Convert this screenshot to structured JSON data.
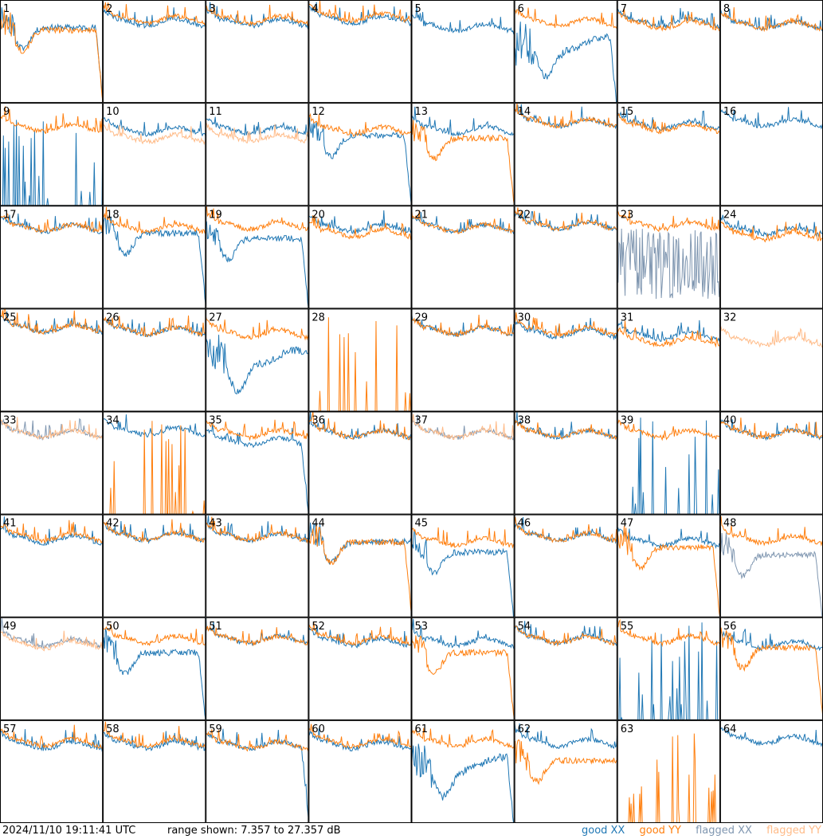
{
  "footer": {
    "timestamp": "2024/11/10 19:11:41 UTC",
    "range_text": "range shown: 7.357 to 27.357 dB",
    "legend": [
      {
        "label": "good XX",
        "color": "#1f77b4"
      },
      {
        "label": "good YY",
        "color": "#ff7f0e"
      },
      {
        "label": "flagged XX",
        "color": "#7f96b0"
      },
      {
        "label": "flagged YY",
        "color": "#ffbb88"
      }
    ]
  },
  "chart_data": {
    "type": "line",
    "grid_rows": 8,
    "grid_cols": 8,
    "ylim": [
      7.357,
      27.357
    ],
    "yunit": "dB",
    "series_colors": {
      "good_xx": "#1f77b4",
      "good_yy": "#ff7f0e",
      "flagged_xx": "#7f96b0",
      "flagged_yy": "#ffbb88"
    },
    "panels": [
      {
        "label": "1",
        "xx": {
          "state": "good",
          "shape": "dip",
          "level": 22,
          "drop": true
        },
        "yy": {
          "state": "good",
          "shape": "dip",
          "level": 21.5,
          "drop": true
        }
      },
      {
        "label": "2",
        "xx": {
          "state": "good",
          "shape": "normal",
          "level": 23
        },
        "yy": {
          "state": "good",
          "shape": "normal",
          "level": 23.5
        }
      },
      {
        "label": "3",
        "xx": {
          "state": "good",
          "shape": "normal",
          "level": 23
        },
        "yy": {
          "state": "good",
          "shape": "normal",
          "level": 23.5
        }
      },
      {
        "label": "4",
        "xx": {
          "state": "good",
          "shape": "normal",
          "level": 23.5
        },
        "yy": {
          "state": "good",
          "shape": "normal",
          "level": 24
        }
      },
      {
        "label": "5",
        "xx": {
          "state": "good",
          "shape": "normal",
          "level": 22
        },
        "yy": {
          "state": "good",
          "shape": "flat_low"
        }
      },
      {
        "label": "6",
        "xx": {
          "state": "good",
          "shape": "deep_dip",
          "level": 19,
          "drop": true
        },
        "yy": {
          "state": "good",
          "shape": "normal",
          "level": 23
        }
      },
      {
        "label": "7",
        "xx": {
          "state": "good",
          "shape": "normal",
          "level": 23
        },
        "yy": {
          "state": "good",
          "shape": "normal",
          "level": 22.5
        }
      },
      {
        "label": "8",
        "xx": {
          "state": "good",
          "shape": "normal",
          "level": 22.5
        },
        "yy": {
          "state": "good",
          "shape": "normal",
          "level": 22.5
        }
      },
      {
        "label": "9",
        "xx": {
          "state": "good",
          "shape": "sparse_spikes"
        },
        "yy": {
          "state": "good",
          "shape": "normal",
          "level": 22.5
        }
      },
      {
        "label": "10",
        "xx": {
          "state": "good",
          "shape": "normal",
          "level": 22
        },
        "yy": {
          "state": "flagged",
          "shape": "normal",
          "level": 20.5
        }
      },
      {
        "label": "11",
        "xx": {
          "state": "good",
          "shape": "normal",
          "level": 22
        },
        "yy": {
          "state": "flagged",
          "shape": "normal",
          "level": 20.5
        }
      },
      {
        "label": "12",
        "xx": {
          "state": "good",
          "shape": "dip",
          "level": 21,
          "drop": true
        },
        "yy": {
          "state": "good",
          "shape": "normal",
          "level": 22
        }
      },
      {
        "label": "13",
        "xx": {
          "state": "good",
          "shape": "normal",
          "level": 22
        },
        "yy": {
          "state": "good",
          "shape": "dip",
          "level": 20.5,
          "drop": true
        }
      },
      {
        "label": "14",
        "xx": {
          "state": "good",
          "shape": "normal",
          "level": 23.5
        },
        "yy": {
          "state": "good",
          "shape": "normal",
          "level": 23.5
        }
      },
      {
        "label": "15",
        "xx": {
          "state": "good",
          "shape": "normal",
          "level": 23
        },
        "yy": {
          "state": "good",
          "shape": "normal",
          "level": 22.5
        }
      },
      {
        "label": "16",
        "xx": {
          "state": "good",
          "shape": "normal",
          "level": 23.5
        },
        "yy": {
          "state": "flagged",
          "shape": "flat_low"
        }
      },
      {
        "label": "17",
        "xx": {
          "state": "good",
          "shape": "normal",
          "level": 23
        },
        "yy": {
          "state": "good",
          "shape": "normal",
          "level": 23
        }
      },
      {
        "label": "18",
        "xx": {
          "state": "good",
          "shape": "dip",
          "level": 22,
          "drop": true
        },
        "yy": {
          "state": "good",
          "shape": "normal",
          "level": 23
        }
      },
      {
        "label": "19",
        "xx": {
          "state": "good",
          "shape": "dip",
          "level": 21,
          "drop": true
        },
        "yy": {
          "state": "good",
          "shape": "normal",
          "level": 23.5
        }
      },
      {
        "label": "20",
        "xx": {
          "state": "good",
          "shape": "normal",
          "level": 23
        },
        "yy": {
          "state": "good",
          "shape": "normal",
          "level": 22
        }
      },
      {
        "label": "21",
        "xx": {
          "state": "good",
          "shape": "normal",
          "level": 23
        },
        "yy": {
          "state": "good",
          "shape": "normal",
          "level": 23
        }
      },
      {
        "label": "22",
        "xx": {
          "state": "good",
          "shape": "normal",
          "level": 23.5
        },
        "yy": {
          "state": "good",
          "shape": "normal",
          "level": 23.5
        }
      },
      {
        "label": "23",
        "xx": {
          "state": "flagged",
          "shape": "noisy",
          "level": 16
        },
        "yy": {
          "state": "good",
          "shape": "normal",
          "level": 23.5
        }
      },
      {
        "label": "24",
        "xx": {
          "state": "good",
          "shape": "normal",
          "level": 22.5
        },
        "yy": {
          "state": "good",
          "shape": "normal",
          "level": 21.5
        }
      },
      {
        "label": "25",
        "xx": {
          "state": "good",
          "shape": "normal",
          "level": 23.5
        },
        "yy": {
          "state": "good",
          "shape": "normal",
          "level": 23.5
        }
      },
      {
        "label": "26",
        "xx": {
          "state": "good",
          "shape": "normal",
          "level": 23
        },
        "yy": {
          "state": "good",
          "shape": "normal",
          "level": 23
        }
      },
      {
        "label": "27",
        "xx": {
          "state": "good",
          "shape": "deep_dip",
          "level": 18
        },
        "yy": {
          "state": "good",
          "shape": "normal",
          "level": 22.5
        }
      },
      {
        "label": "28",
        "xx": {
          "state": "good",
          "shape": "flat_low"
        },
        "yy": {
          "state": "good",
          "shape": "sparse_spikes"
        }
      },
      {
        "label": "29",
        "xx": {
          "state": "good",
          "shape": "normal",
          "level": 23
        },
        "yy": {
          "state": "good",
          "shape": "normal",
          "level": 23
        }
      },
      {
        "label": "30",
        "xx": {
          "state": "good",
          "shape": "normal",
          "level": 22.5
        },
        "yy": {
          "state": "good",
          "shape": "normal",
          "level": 23
        }
      },
      {
        "label": "31",
        "xx": {
          "state": "good",
          "shape": "normal",
          "level": 22
        },
        "yy": {
          "state": "good",
          "shape": "normal",
          "level": 21
        }
      },
      {
        "label": "32",
        "xx": {
          "state": "flagged",
          "shape": "flat_low"
        },
        "yy": {
          "state": "flagged",
          "shape": "normal",
          "level": 21
        }
      },
      {
        "label": "33",
        "xx": {
          "state": "flagged",
          "shape": "normal",
          "level": 23
        },
        "yy": {
          "state": "flagged",
          "shape": "normal",
          "level": 23
        }
      },
      {
        "label": "34",
        "xx": {
          "state": "good",
          "shape": "normal",
          "level": 23.5
        },
        "yy": {
          "state": "good",
          "shape": "sparse_spikes"
        }
      },
      {
        "label": "35",
        "xx": {
          "state": "good",
          "shape": "normal",
          "level": 21.5,
          "drop": true
        },
        "yy": {
          "state": "good",
          "shape": "normal",
          "level": 23
        }
      },
      {
        "label": "36",
        "xx": {
          "state": "good",
          "shape": "normal",
          "level": 23
        },
        "yy": {
          "state": "good",
          "shape": "normal",
          "level": 23
        }
      },
      {
        "label": "37",
        "xx": {
          "state": "flagged",
          "shape": "normal",
          "level": 23
        },
        "yy": {
          "state": "flagged",
          "shape": "normal",
          "level": 23
        }
      },
      {
        "label": "38",
        "xx": {
          "state": "good",
          "shape": "normal",
          "level": 23
        },
        "yy": {
          "state": "good",
          "shape": "normal",
          "level": 23
        }
      },
      {
        "label": "39",
        "xx": {
          "state": "good",
          "shape": "sparse_spikes"
        },
        "yy": {
          "state": "good",
          "shape": "normal",
          "level": 23
        }
      },
      {
        "label": "40",
        "xx": {
          "state": "good",
          "shape": "normal",
          "level": 23
        },
        "yy": {
          "state": "good",
          "shape": "normal",
          "level": 23
        }
      },
      {
        "label": "41",
        "xx": {
          "state": "good",
          "shape": "normal",
          "level": 22.5
        },
        "yy": {
          "state": "good",
          "shape": "normal",
          "level": 23
        }
      },
      {
        "label": "42",
        "xx": {
          "state": "good",
          "shape": "normal",
          "level": 23
        },
        "yy": {
          "state": "good",
          "shape": "normal",
          "level": 23
        }
      },
      {
        "label": "43",
        "xx": {
          "state": "good",
          "shape": "normal",
          "level": 23
        },
        "yy": {
          "state": "good",
          "shape": "normal",
          "level": 23
        }
      },
      {
        "label": "44",
        "xx": {
          "state": "good",
          "shape": "dip",
          "level": 22
        },
        "yy": {
          "state": "good",
          "shape": "dip",
          "level": 22,
          "drop": true
        }
      },
      {
        "label": "45",
        "xx": {
          "state": "good",
          "shape": "dip",
          "level": 20,
          "drop": true
        },
        "yy": {
          "state": "good",
          "shape": "normal",
          "level": 22
        }
      },
      {
        "label": "46",
        "xx": {
          "state": "good",
          "shape": "normal",
          "level": 23
        },
        "yy": {
          "state": "good",
          "shape": "normal",
          "level": 23
        }
      },
      {
        "label": "47",
        "xx": {
          "state": "good",
          "shape": "normal",
          "level": 22
        },
        "yy": {
          "state": "good",
          "shape": "dip",
          "level": 21,
          "drop": true
        }
      },
      {
        "label": "48",
        "xx": {
          "state": "flagged",
          "shape": "dip",
          "level": 19.5,
          "drop": true
        },
        "yy": {
          "state": "good",
          "shape": "normal",
          "level": 22.5
        }
      },
      {
        "label": "49",
        "xx": {
          "state": "flagged",
          "shape": "normal",
          "level": 22.5
        },
        "yy": {
          "state": "flagged",
          "shape": "normal",
          "level": 22
        }
      },
      {
        "label": "50",
        "xx": {
          "state": "good",
          "shape": "dip",
          "level": 20.5,
          "drop": true
        },
        "yy": {
          "state": "good",
          "shape": "normal",
          "level": 23
        }
      },
      {
        "label": "51",
        "xx": {
          "state": "good",
          "shape": "normal",
          "level": 23
        },
        "yy": {
          "state": "good",
          "shape": "normal",
          "level": 23
        }
      },
      {
        "label": "52",
        "xx": {
          "state": "good",
          "shape": "normal",
          "level": 22.5
        },
        "yy": {
          "state": "good",
          "shape": "normal",
          "level": 23
        }
      },
      {
        "label": "53",
        "xx": {
          "state": "good",
          "shape": "normal",
          "level": 22.5
        },
        "yy": {
          "state": "good",
          "shape": "dip",
          "level": 20.5,
          "drop": true
        }
      },
      {
        "label": "54",
        "xx": {
          "state": "good",
          "shape": "normal",
          "level": 23
        },
        "yy": {
          "state": "good",
          "shape": "normal",
          "level": 23
        }
      },
      {
        "label": "55",
        "xx": {
          "state": "good",
          "shape": "sparse_spikes"
        },
        "yy": {
          "state": "good",
          "shape": "normal",
          "level": 23
        }
      },
      {
        "label": "56",
        "xx": {
          "state": "good",
          "shape": "normal",
          "level": 22
        },
        "yy": {
          "state": "good",
          "shape": "dip",
          "level": 21.5,
          "drop": true
        }
      },
      {
        "label": "57",
        "xx": {
          "state": "good",
          "shape": "normal",
          "level": 22.5
        },
        "yy": {
          "state": "good",
          "shape": "normal",
          "level": 23
        }
      },
      {
        "label": "58",
        "xx": {
          "state": "good",
          "shape": "normal",
          "level": 22.5
        },
        "yy": {
          "state": "good",
          "shape": "normal",
          "level": 23
        }
      },
      {
        "label": "59",
        "xx": {
          "state": "good",
          "shape": "normal",
          "level": 22.5,
          "drop": true
        },
        "yy": {
          "state": "good",
          "shape": "normal",
          "level": 22.5
        }
      },
      {
        "label": "60",
        "xx": {
          "state": "good",
          "shape": "normal",
          "level": 22.5
        },
        "yy": {
          "state": "good",
          "shape": "normal",
          "level": 23
        }
      },
      {
        "label": "61",
        "xx": {
          "state": "good",
          "shape": "deep_dip",
          "level": 19,
          "drop": true
        },
        "yy": {
          "state": "good",
          "shape": "normal",
          "level": 23
        }
      },
      {
        "label": "62",
        "xx": {
          "state": "good",
          "shape": "normal",
          "level": 23
        },
        "yy": {
          "state": "good",
          "shape": "dip",
          "level": 19.5
        }
      },
      {
        "label": "63",
        "xx": {
          "state": "good",
          "shape": "flat_low"
        },
        "yy": {
          "state": "good",
          "shape": "sparse_spikes"
        }
      },
      {
        "label": "64",
        "xx": {
          "state": "good",
          "shape": "normal",
          "level": 23.5
        },
        "yy": {
          "state": "good",
          "shape": "flat_low"
        }
      }
    ]
  }
}
